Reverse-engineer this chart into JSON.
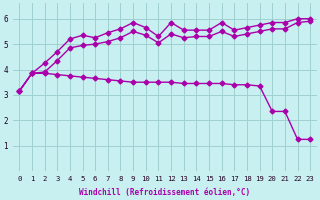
{
  "xlabel": "Windchill (Refroidissement éolien,°C)",
  "background_color": "#c8f0f0",
  "line_color": "#aa00aa",
  "grid_color": "#a0d0d0",
  "xlim": [
    -0.5,
    23.5
  ],
  "ylim": [
    0,
    6.6
  ],
  "yticks": [
    1,
    2,
    3,
    4,
    5,
    6
  ],
  "xticks": [
    0,
    1,
    2,
    3,
    4,
    5,
    6,
    7,
    8,
    9,
    10,
    11,
    12,
    13,
    14,
    15,
    16,
    17,
    18,
    19,
    20,
    21,
    22,
    23
  ],
  "curve_upper_x": [
    0,
    1,
    2,
    3,
    4,
    5,
    6,
    7,
    8,
    9,
    10,
    11,
    12,
    13,
    14,
    15,
    16,
    17,
    18,
    19,
    20,
    21,
    22,
    23
  ],
  "curve_upper_y": [
    3.15,
    3.85,
    4.25,
    4.7,
    5.2,
    5.35,
    5.25,
    5.45,
    5.6,
    5.85,
    5.65,
    5.3,
    5.85,
    5.55,
    5.55,
    5.55,
    5.85,
    5.55,
    5.65,
    5.75,
    5.85,
    5.85,
    6.0,
    6.0
  ],
  "curve_mid_x": [
    0,
    1,
    2,
    3,
    4,
    5,
    6,
    7,
    8,
    9,
    10,
    11,
    12,
    13,
    14,
    15,
    16,
    17,
    18,
    19,
    20,
    21,
    22,
    23
  ],
  "curve_mid_y": [
    3.15,
    3.85,
    3.9,
    4.35,
    4.85,
    4.95,
    5.0,
    5.1,
    5.25,
    5.5,
    5.35,
    5.05,
    5.4,
    5.25,
    5.3,
    5.3,
    5.5,
    5.3,
    5.4,
    5.5,
    5.6,
    5.6,
    5.85,
    5.9
  ],
  "curve_lower_x": [
    0,
    1,
    2,
    3,
    4,
    5,
    6,
    7,
    8,
    9,
    10,
    11,
    12,
    13,
    14,
    15,
    16,
    17,
    18,
    19,
    20,
    21,
    22,
    23
  ],
  "curve_lower_y": [
    3.15,
    3.85,
    3.85,
    3.8,
    3.75,
    3.7,
    3.65,
    3.6,
    3.55,
    3.5,
    3.5,
    3.5,
    3.5,
    3.45,
    3.45,
    3.45,
    3.45,
    3.4,
    3.4,
    3.35,
    2.35,
    2.35,
    1.25,
    1.25
  ],
  "marker": "D",
  "markersize": 2.5,
  "linewidth": 1.0
}
